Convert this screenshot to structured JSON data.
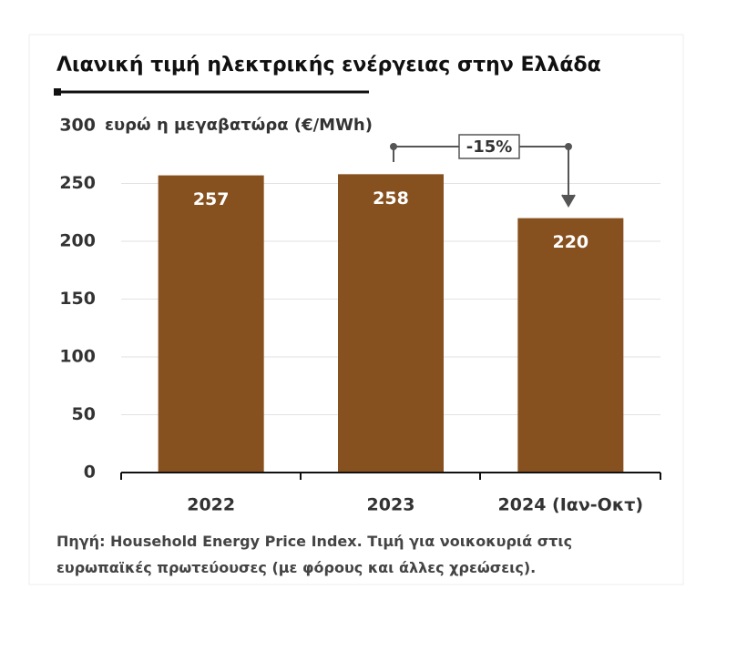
{
  "chart_data": {
    "type": "bar",
    "title": "Λιανική τιμή ηλεκτρικής ενέργειας στην Ελλάδα",
    "y_label": "ευρώ η μεγαβατώρα (€/MWh)",
    "categories": [
      "2022",
      "2023",
      "2024 (Ιαν-Οκτ)"
    ],
    "values": [
      257,
      258,
      220
    ],
    "color": "#87511f",
    "ylim": [
      0,
      300
    ],
    "yticks": [
      0,
      50,
      100,
      150,
      200,
      250,
      300
    ],
    "grid": true,
    "annotation": "-15%",
    "source": "Πηγή: Household Energy Price Index. Τιμή για νοικοκυριά στις ευρωπαϊκές πρωτεύουσες (με φόρους και άλλες χρεώσεις)."
  }
}
